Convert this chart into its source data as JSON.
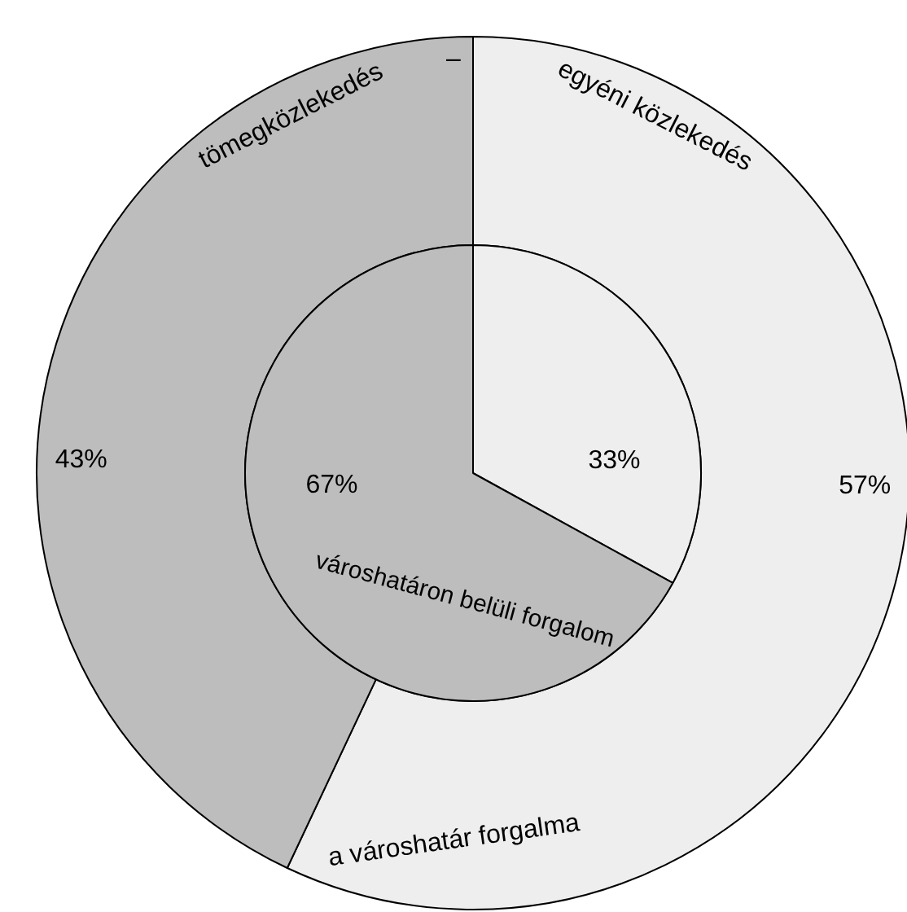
{
  "chart_data": {
    "type": "donut",
    "categories": [
      "egyéni közlekedés",
      "tömegközlekedés"
    ],
    "annotations": [
      "–"
    ],
    "data_labels": true,
    "series": [
      {
        "name": "a városhatár forgalma",
        "values": [
          57,
          43
        ],
        "value_labels": [
          "57%",
          "43%"
        ],
        "colors": [
          "#eeeeee",
          "#bdbdbd"
        ]
      },
      {
        "name": "városhatáron belüli forgalom",
        "type": "pie",
        "values": [
          33,
          67
        ],
        "value_labels": [
          "33%",
          "67%"
        ],
        "colors": [
          "#eeeeee",
          "#bdbdbd"
        ]
      }
    ]
  }
}
